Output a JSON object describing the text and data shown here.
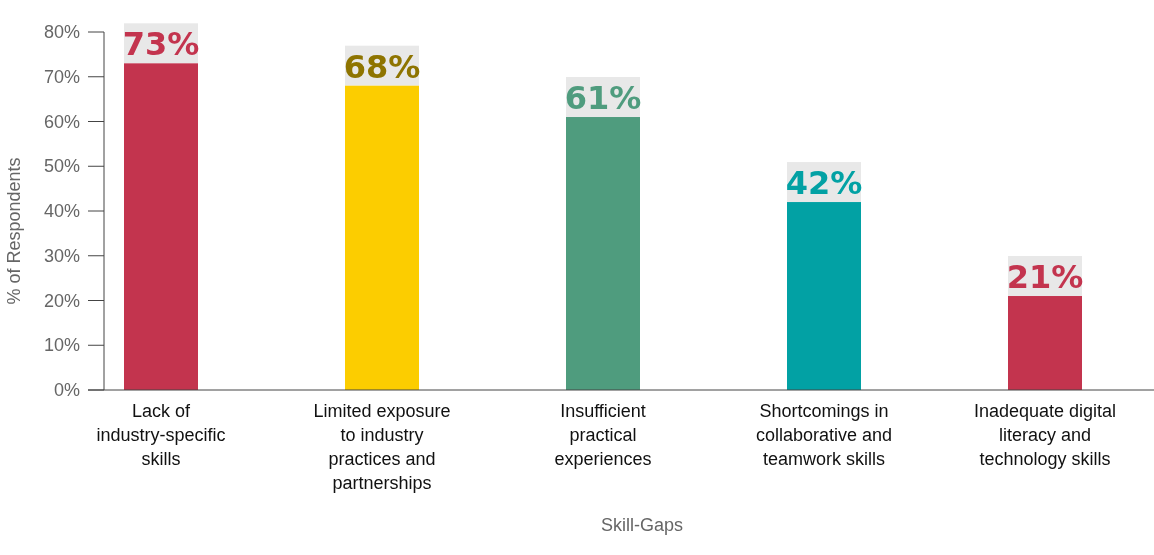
{
  "chart_data": {
    "type": "bar",
    "xlabel": "Skill-Gaps",
    "ylabel": "% of Respondents",
    "categories": [
      "Lack of industry-specific skills",
      "Limited exposure to industry practices and partnerships",
      "Insufficient practical experiences",
      "Shortcomings in collaborative and teamwork skills",
      "Inadequate digital literacy and technology skills"
    ],
    "values": [
      73,
      68,
      61,
      42,
      21
    ],
    "colors": [
      "#c3344e",
      "#fccd00",
      "#4f9c7e",
      "#02a1a4",
      "#c3344e"
    ],
    "value_labels": [
      "73%",
      "68%",
      "61%",
      "42%",
      "21%"
    ],
    "ylim": [
      0,
      80
    ],
    "yticks": [
      {
        "value": 0,
        "label": "0%"
      },
      {
        "value": 10,
        "label": "10%"
      },
      {
        "value": 20,
        "label": "20%"
      },
      {
        "value": 30,
        "label": "30%"
      },
      {
        "value": 40,
        "label": "40%"
      },
      {
        "value": 50,
        "label": "50%"
      },
      {
        "value": 60,
        "label": "60%"
      },
      {
        "value": 70,
        "label": "70%"
      },
      {
        "value": 80,
        "label": "80%"
      }
    ],
    "grid": false
  }
}
